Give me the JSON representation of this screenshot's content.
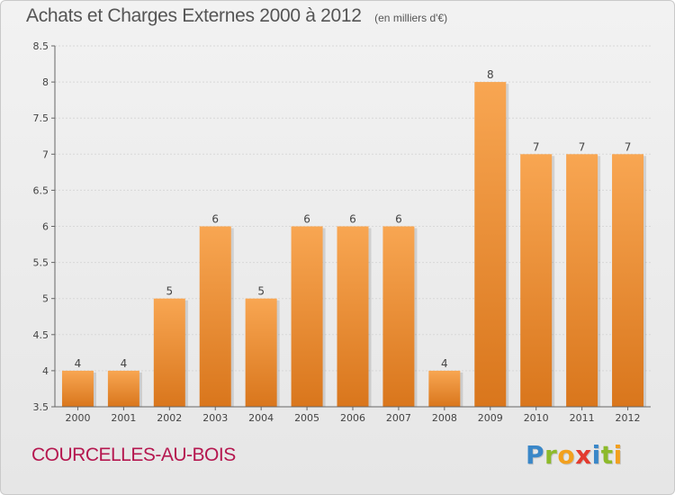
{
  "header": {
    "title": "Achats et Charges Externes 2000 à 2012",
    "subtitle": "(en milliers d'€)"
  },
  "footer": {
    "commune": "COURCELLES-AU-BOIS",
    "logo_letters": [
      "P",
      "r",
      "o",
      "x",
      "i",
      "t",
      "i"
    ],
    "logo_colors": [
      "#3a87c8",
      "#8dba2b",
      "#f2a01e",
      "#e33b2f",
      "#3a87c8",
      "#8dba2b",
      "#f2a01e"
    ]
  },
  "colors": {
    "bar_light": "#f8a652",
    "bar_dark": "#d9761c",
    "axis": "#666666",
    "grid": "#d8d8d8"
  },
  "chart_data": {
    "type": "bar",
    "title": "Achats et Charges Externes 2000 à 2012",
    "subtitle": "(en milliers d'€)",
    "categories": [
      "2000",
      "2001",
      "2002",
      "2003",
      "2004",
      "2005",
      "2006",
      "2007",
      "2008",
      "2009",
      "2010",
      "2011",
      "2012"
    ],
    "values": [
      4,
      4,
      5,
      6,
      5,
      6,
      6,
      6,
      4,
      8,
      7,
      7,
      7
    ],
    "data_labels": [
      "4",
      "4",
      "5",
      "6",
      "5",
      "6",
      "6",
      "6",
      "4",
      "8",
      "7",
      "7",
      "7"
    ],
    "yticks": [
      "3.5",
      "4",
      "4.5",
      "5",
      "5.5",
      "6",
      "6.5",
      "7",
      "7.5",
      "8",
      "8.5"
    ],
    "ylim": [
      3.5,
      8.5
    ],
    "xlabel": "",
    "ylabel": "",
    "grid": true,
    "legend": "none"
  }
}
